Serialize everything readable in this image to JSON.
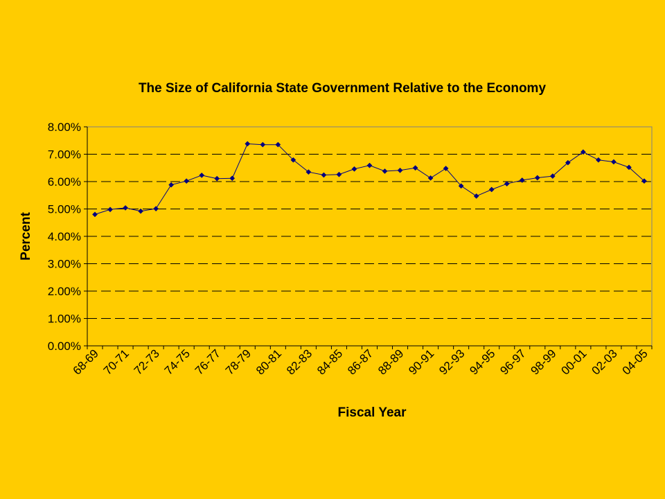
{
  "chart_data": {
    "type": "line",
    "title": "The Size of California State Government Relative to the Economy",
    "xlabel": "Fiscal Year",
    "ylabel": "Percent",
    "ylim": [
      0,
      8
    ],
    "y_ticks": [
      "0.00%",
      "1.00%",
      "2.00%",
      "3.00%",
      "4.00%",
      "5.00%",
      "6.00%",
      "7.00%",
      "8.00%"
    ],
    "x_tick_labels": [
      "68-69",
      "70-71",
      "72-73",
      "74-75",
      "76-77",
      "78-79",
      "80-81",
      "82-83",
      "84-85",
      "86-87",
      "88-89",
      "90-91",
      "92-93",
      "94-95",
      "96-97",
      "98-99",
      "00-01",
      "02-03",
      "04-05"
    ],
    "categories": [
      "68-69",
      "69-70",
      "70-71",
      "71-72",
      "72-73",
      "73-74",
      "74-75",
      "75-76",
      "76-77",
      "77-78",
      "78-79",
      "79-80",
      "80-81",
      "81-82",
      "82-83",
      "83-84",
      "84-85",
      "85-86",
      "86-87",
      "87-88",
      "88-89",
      "89-90",
      "90-91",
      "91-92",
      "92-93",
      "93-94",
      "94-95",
      "95-96",
      "96-97",
      "97-98",
      "98-99",
      "99-00",
      "00-01",
      "01-02",
      "02-03",
      "03-04",
      "04-05"
    ],
    "values": [
      4.8,
      4.98,
      5.04,
      4.92,
      5.01,
      5.88,
      6.02,
      6.23,
      6.11,
      6.12,
      7.38,
      7.35,
      7.35,
      6.79,
      6.35,
      6.24,
      6.26,
      6.46,
      6.59,
      6.38,
      6.41,
      6.5,
      6.13,
      6.48,
      5.84,
      5.47,
      5.71,
      5.92,
      6.05,
      6.14,
      6.2,
      6.69,
      7.08,
      6.79,
      6.72,
      6.52,
      6.02
    ],
    "grid": true,
    "colors": {
      "background": "#FFCC00",
      "plot_area": "#FFCC00",
      "line": "#000080",
      "marker": "#000080"
    }
  }
}
